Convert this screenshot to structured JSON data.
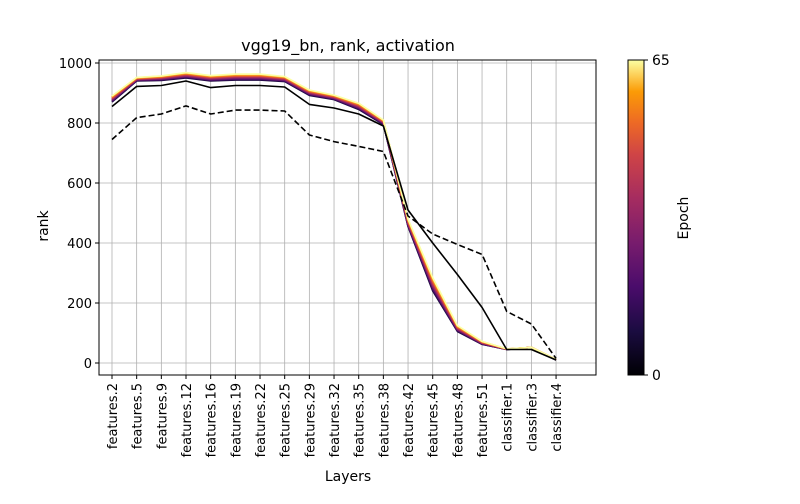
{
  "chart_data": {
    "type": "line",
    "title": "vgg19_bn, rank, activation",
    "xlabel": "Layers",
    "ylabel": "rank",
    "categories": [
      "features.2",
      "features.5",
      "features.9",
      "features.12",
      "features.16",
      "features.19",
      "features.22",
      "features.25",
      "features.29",
      "features.32",
      "features.35",
      "features.38",
      "features.42",
      "features.45",
      "features.48",
      "features.51",
      "classifier.1",
      "classifier.3",
      "classifier.4"
    ],
    "ylim": [
      -40,
      1010
    ],
    "yticks": [
      0,
      200,
      400,
      600,
      800,
      1000
    ],
    "grid": true,
    "reference_series": [
      {
        "style": "dashed",
        "color": "#000000",
        "values": [
          745,
          818,
          830,
          857,
          830,
          843,
          843,
          840,
          760,
          738,
          722,
          705,
          490,
          430,
          395,
          362,
          172,
          130,
          15
        ]
      },
      {
        "style": "solid",
        "color": "#000000",
        "values": [
          855,
          922,
          925,
          940,
          918,
          925,
          925,
          920,
          862,
          850,
          830,
          790,
          510,
          400,
          295,
          185,
          45,
          45,
          10
        ]
      }
    ],
    "epoch_series": {
      "colormap": "inferno",
      "epoch_range": [
        0,
        65
      ],
      "start": [
        870,
        940,
        942,
        950,
        940,
        943,
        943,
        938,
        892,
        878,
        845,
        795,
        455,
        240,
        105,
        62,
        45,
        52,
        10
      ],
      "end": [
        890,
        952,
        957,
        968,
        958,
        963,
        963,
        955,
        910,
        893,
        866,
        810,
        480,
        285,
        125,
        72,
        47,
        52,
        12
      ]
    },
    "colorbar": {
      "label": "Epoch",
      "min_label": "0",
      "max_label": "65"
    }
  }
}
